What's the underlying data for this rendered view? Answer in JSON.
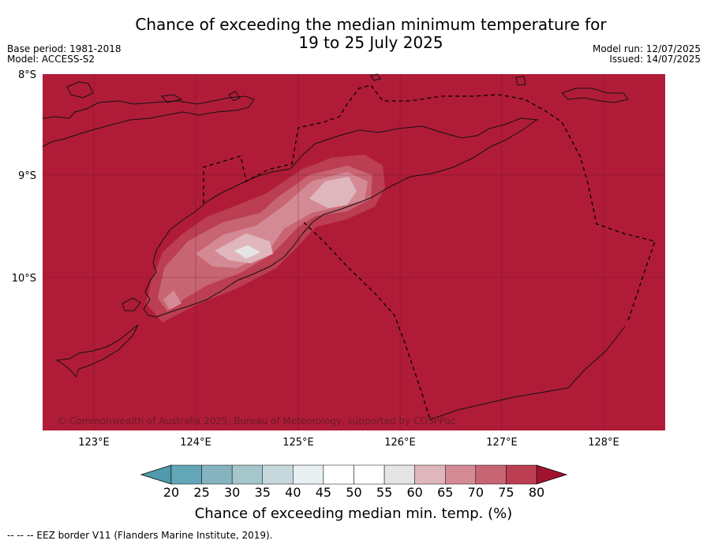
{
  "title_line1": "Chance of exceeding the median minimum temperature for",
  "title_line2": "19 to 25 July 2025",
  "base_period": "Base period: 1981-2018",
  "model": "Model: ACCESS-S2",
  "model_run": "Model run: 12/07/2025",
  "issued": "Issued: 14/07/2025",
  "copyright": "© Commonwealth of Australia 2025, Bureau of Meteorology, supported by COSPPac",
  "longitude_labels": [
    "123°E",
    "124°E",
    "125°E",
    "126°E",
    "127°E",
    "128°E"
  ],
  "latitude_labels": [
    "8°S",
    "9°S",
    "10°S"
  ],
  "colorbar": {
    "title": "Chance of exceeding median min. temp. (%)",
    "ticks": [
      "20",
      "25",
      "30",
      "35",
      "40",
      "45",
      "50",
      "55",
      "60",
      "65",
      "70",
      "75",
      "80"
    ],
    "colors": [
      "#62a6b8",
      "#85b4c0",
      "#a5c6cb",
      "#c6d8dc",
      "#e7eff1",
      "#ffffff",
      "#ffffff",
      "#e5e5e5",
      "#e0b6bd",
      "#d48a95",
      "#c86573",
      "#bb3e52",
      "#b01c38"
    ]
  },
  "background_color": "#b01c38",
  "footer": "--  --  -- EEZ border V11 (Flanders Marine Institute, 2019)."
}
